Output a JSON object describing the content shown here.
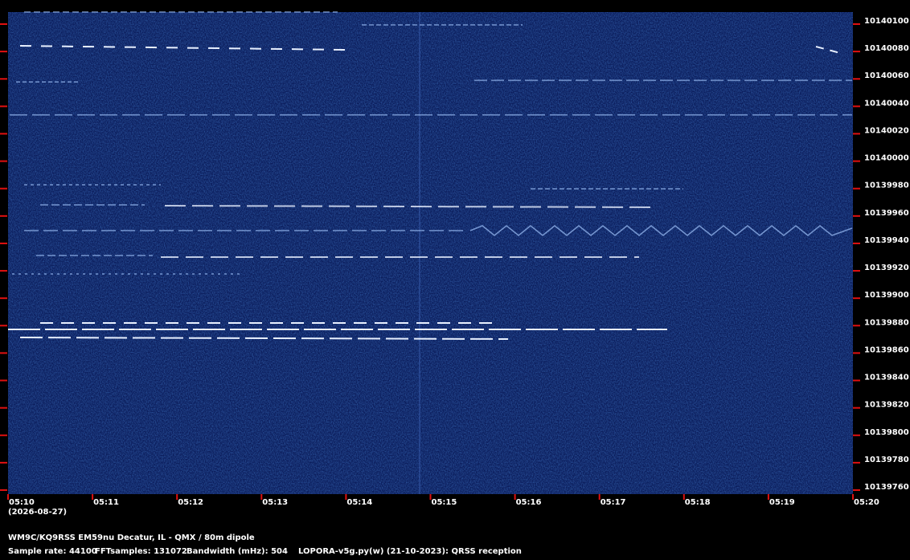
{
  "y_labels": [
    10140100,
    10140080,
    10140060,
    10140040,
    10140020,
    10140000,
    10139980,
    10139960,
    10139940,
    10139920,
    10139900,
    10139880,
    10139860,
    10139840,
    10139820,
    10139800,
    10139780,
    10139760
  ],
  "x_labels": [
    "05:10",
    "05:11",
    "05:12",
    "05:13",
    "05:14",
    "05:15",
    "05:16",
    "05:17",
    "05:18",
    "05:19",
    "05:20"
  ],
  "date": "(2026-08-27)",
  "station": "WM9C/KQ9RSS EM59nu Decatur, IL - QMX / 80m dipole",
  "sample_rate": "Sample rate: 44100",
  "fft_samples": "FFTsamples: 131072",
  "bandwidth": "Bandwidth (mHz): 504",
  "software": "LOPORA-v5g.py(w) (21-10-2023): QRSS reception"
}
